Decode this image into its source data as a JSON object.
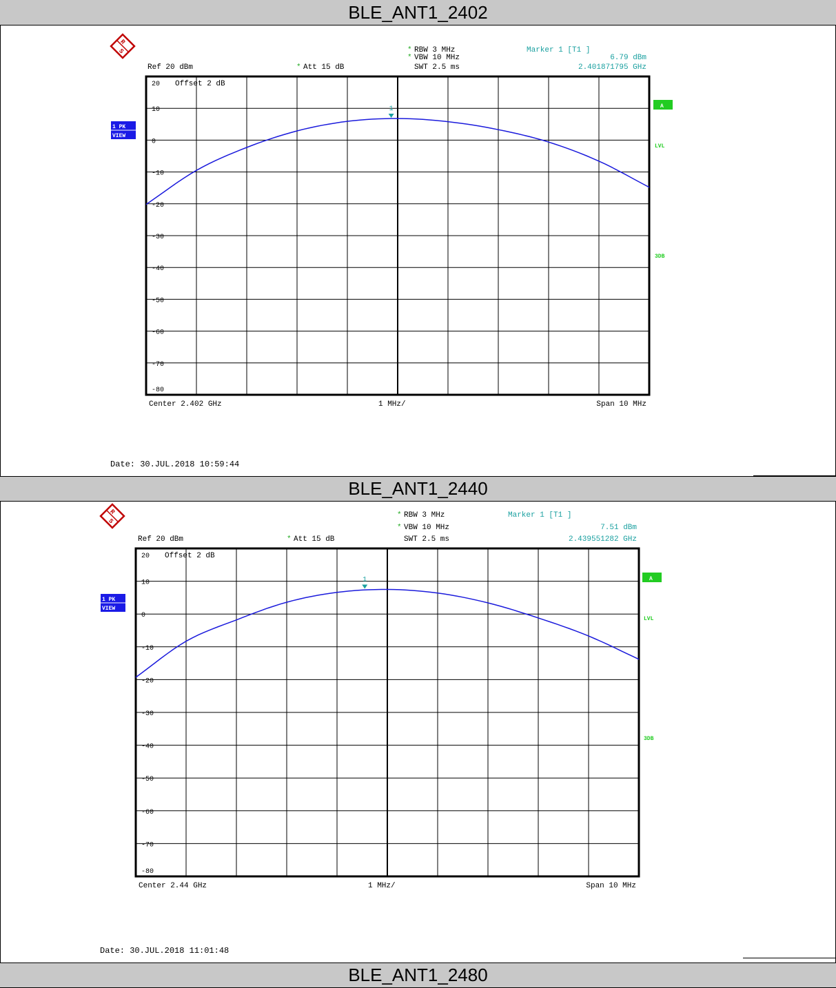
{
  "sections": [
    {
      "title": "BLE_ANT1_2402",
      "date_text": "Date: 30.JUL.2018  10:59:44",
      "chart_data": {
        "type": "line",
        "ref": "Ref   20 dBm",
        "att": "Att   15 dB",
        "rbw": "RBW  3 MHz",
        "vbw": "VBW  10 MHz",
        "swt": "SWT  2.5 ms",
        "offset": "Offset   2 dB",
        "marker_title": "Marker 1 [T1 ]",
        "marker_level": "6.79 dBm",
        "marker_freq": "2.401871795 GHz",
        "center_label": "Center  2.402 GHz",
        "div_label": "1 MHz/",
        "span_label": "Span  10 MHz",
        "trace_label": [
          "1 PK",
          "VIEW"
        ],
        "side_labels": [
          "A",
          "LVL",
          "3DB"
        ],
        "marker_id": "1",
        "y_ticks": [
          "20",
          "10",
          "0",
          "-10",
          "-20",
          "-30",
          "-40",
          "-50",
          "-60",
          "-70",
          "-80"
        ],
        "x_unit": "GHz",
        "y_unit": "dBm",
        "xlim": [
          2.397,
          2.407
        ],
        "ylim": [
          -80,
          20
        ],
        "series": [
          {
            "x": [
              2.397,
              2.398,
              2.399,
              2.4,
              2.401,
              2.402,
              2.403,
              2.404,
              2.405,
              2.406,
              2.407
            ],
            "y": [
              -20.2,
              -9.5,
              -2.3,
              2.9,
              5.9,
              6.8,
              5.8,
              3.3,
              -0.6,
              -6.6,
              -14.8
            ]
          }
        ],
        "marker": {
          "x": 2.401871795,
          "y": 6.79
        }
      }
    },
    {
      "title": "BLE_ANT1_2440",
      "date_text": "Date: 30.JUL.2018  11:01:48",
      "chart_data": {
        "type": "line",
        "ref": "Ref   20 dBm",
        "att": "Att   15 dB",
        "rbw": "RBW  3 MHz",
        "vbw": "VBW  10 MHz",
        "swt": "SWT  2.5 ms",
        "offset": "Offset   2 dB",
        "marker_title": "Marker 1 [T1 ]",
        "marker_level": "7.51 dBm",
        "marker_freq": "2.439551282 GHz",
        "center_label": "Center  2.44 GHz",
        "div_label": "1 MHz/",
        "span_label": "Span  10 MHz",
        "trace_label": [
          "1 PK",
          "VIEW"
        ],
        "side_labels": [
          "A",
          "LVL",
          "3DB"
        ],
        "marker_id": "1",
        "y_ticks": [
          "20",
          "10",
          "0",
          "-10",
          "-20",
          "-30",
          "-40",
          "-50",
          "-60",
          "-70",
          "-80"
        ],
        "x_unit": "GHz",
        "y_unit": "dBm",
        "xlim": [
          2.435,
          2.445
        ],
        "ylim": [
          -80,
          20
        ],
        "series": [
          {
            "x": [
              2.435,
              2.436,
              2.437,
              2.438,
              2.439,
              2.44,
              2.441,
              2.442,
              2.443,
              2.444,
              2.445
            ],
            "y": [
              -19.3,
              -8.3,
              -1.8,
              3.6,
              6.6,
              7.5,
              6.4,
              3.4,
              -1.2,
              -6.7,
              -13.8
            ]
          }
        ],
        "marker": {
          "x": 2.439551282,
          "y": 7.51
        }
      }
    },
    {
      "title": "BLE_ANT1_2480"
    }
  ],
  "colors": {
    "title_bar": "#c8c8c8",
    "trace": "#1a1adc",
    "marker_text": "#1aa0a0",
    "star": "#22aa22",
    "side_green": "#22cc22",
    "trace_box": "#1a1ae6"
  },
  "icons": [
    "rohde-schwarz-logo-icon"
  ]
}
